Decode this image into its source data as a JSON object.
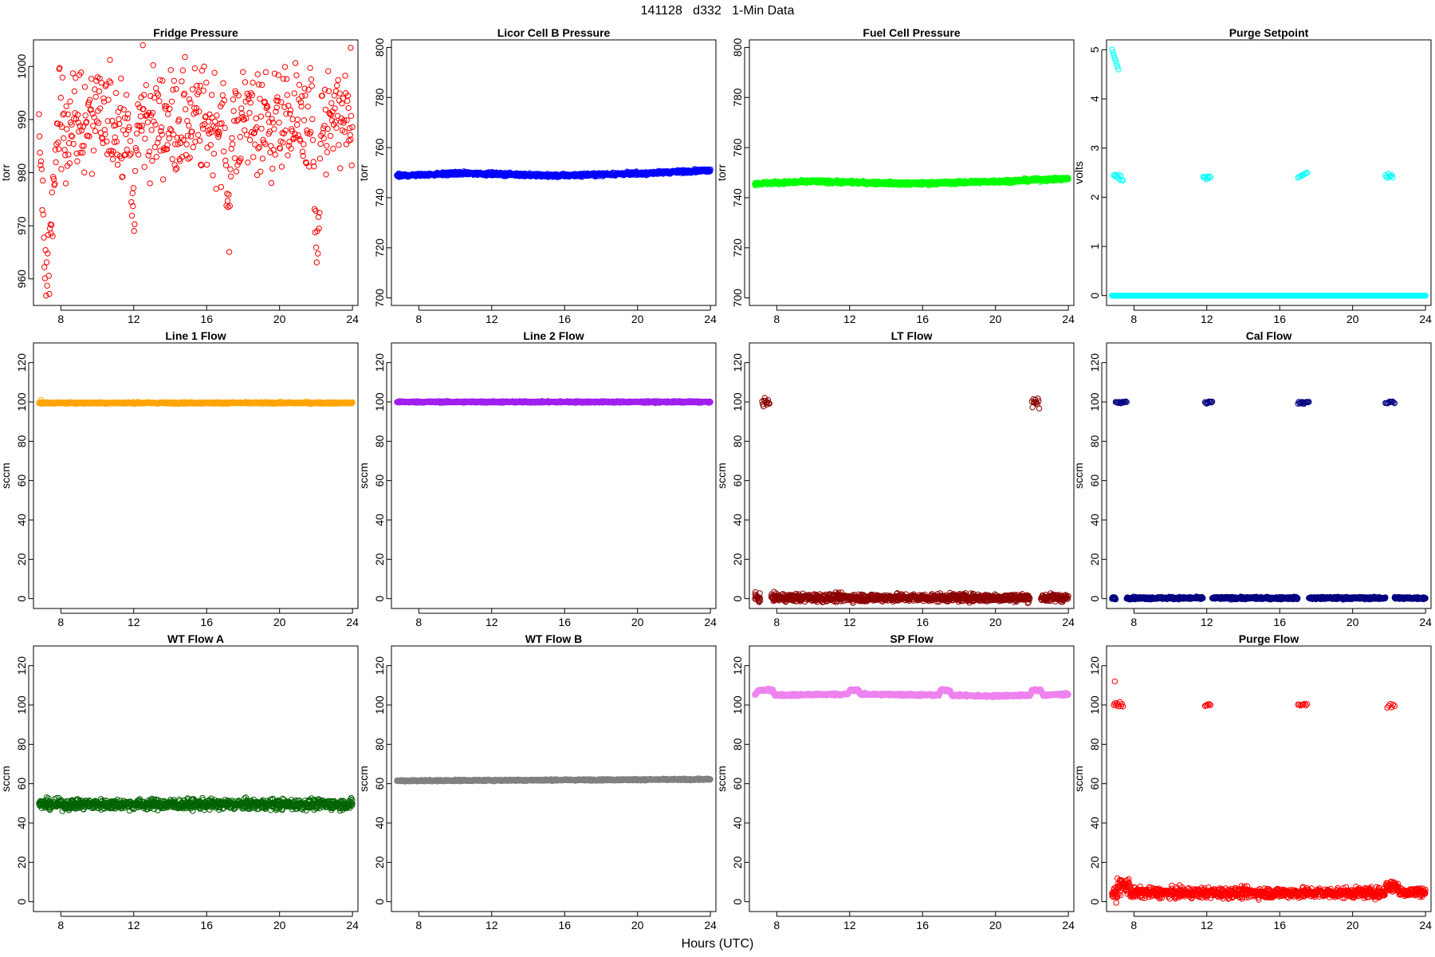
{
  "figure": {
    "title": "141128   d332   1-Min Data",
    "xlabel": "Hours (UTC)"
  },
  "chart_data": [
    {
      "type": "scatter",
      "title": "Fridge Pressure",
      "ylabel": "torr",
      "color": "#ff0000",
      "xlim": [
        6.5,
        24.3
      ],
      "x_ticks": [
        8,
        12,
        16,
        20,
        24
      ],
      "ylim": [
        955,
        1005
      ],
      "y_ticks": [
        960,
        970,
        980,
        990,
        1000
      ],
      "x_range": [
        6.8,
        24
      ],
      "pattern": "noisy",
      "base": 989.5,
      "noise": 5,
      "dips": [
        {
          "x": [
            6.8,
            7.8
          ],
          "to": 956
        },
        {
          "x": [
            11.8,
            12.2
          ],
          "to": 968
        },
        {
          "x": [
            17.0,
            17.4
          ],
          "to": 965
        },
        {
          "x": [
            21.8,
            22.3
          ],
          "to": 962
        }
      ],
      "extremes": [
        {
          "x": 12.5,
          "y": 1004
        },
        {
          "x": 23.9,
          "y": 1003.5
        }
      ]
    },
    {
      "type": "scatter",
      "title": "Licor Cell B Pressure",
      "ylabel": "torr",
      "color": "#0000ff",
      "xlim": [
        6.5,
        24.3
      ],
      "x_ticks": [
        8,
        12,
        16,
        20,
        24
      ],
      "ylim": [
        697,
        803
      ],
      "y_ticks": [
        700,
        720,
        740,
        760,
        780,
        800
      ],
      "x_range": [
        6.8,
        24
      ],
      "pattern": "trend",
      "trend": [
        [
          6.8,
          748.8
        ],
        [
          10.5,
          749.8
        ],
        [
          15.5,
          748.8
        ],
        [
          20.5,
          749.8
        ],
        [
          24,
          751
        ]
      ],
      "noise": 0.3
    },
    {
      "type": "scatter",
      "title": "Fuel Cell Pressure",
      "ylabel": "torr",
      "color": "#00ff00",
      "xlim": [
        6.5,
        24.3
      ],
      "x_ticks": [
        8,
        12,
        16,
        20,
        24
      ],
      "ylim": [
        697,
        803
      ],
      "y_ticks": [
        700,
        720,
        740,
        760,
        780,
        800
      ],
      "x_range": [
        6.8,
        24
      ],
      "pattern": "trend",
      "trend": [
        [
          6.8,
          745.6
        ],
        [
          10,
          746.5
        ],
        [
          15.5,
          745.6
        ],
        [
          20.5,
          746.6
        ],
        [
          24,
          747.6
        ]
      ],
      "noise": 0.3
    },
    {
      "type": "scatter",
      "title": "Purge Setpoint",
      "ylabel": "volts",
      "color": "#00ffff",
      "xlim": [
        6.5,
        24.3
      ],
      "x_ticks": [
        8,
        12,
        16,
        20,
        24
      ],
      "ylim": [
        -0.2,
        5.2
      ],
      "y_ticks": [
        0,
        1,
        2,
        3,
        4,
        5
      ],
      "x_range": [
        6.8,
        24
      ],
      "pattern": "segments",
      "segments": [
        {
          "x": [
            6.8,
            24
          ],
          "y": 0,
          "noise": 0
        }
      ],
      "clusters": [
        {
          "x": [
            6.8,
            7.15
          ],
          "y_from": 5.0,
          "y_to": 4.6,
          "n": 8
        },
        {
          "x": [
            6.9,
            7.4
          ],
          "y": 2.42,
          "noise": 0.05,
          "n": 10
        },
        {
          "x": [
            11.8,
            12.2
          ],
          "y": 2.42,
          "noise": 0.03,
          "n": 8
        },
        {
          "x": [
            17.0,
            17.5
          ],
          "y_from": 2.4,
          "y_to": 2.5,
          "n": 8
        },
        {
          "x": [
            21.8,
            22.2
          ],
          "y": 2.43,
          "noise": 0.02,
          "n": 8
        }
      ]
    },
    {
      "type": "scatter",
      "title": "Line 1 Flow",
      "ylabel": "sccm",
      "color": "#ffa500",
      "xlim": [
        6.5,
        24.3
      ],
      "x_ticks": [
        8,
        12,
        16,
        20,
        24
      ],
      "ylim": [
        -5,
        130
      ],
      "y_ticks": [
        0,
        20,
        40,
        60,
        80,
        100,
        120
      ],
      "x_range": [
        6.8,
        24
      ],
      "pattern": "flat",
      "base": 99.5,
      "noise": 0.2,
      "extremes": [
        {
          "x": 6.9,
          "y": 101
        }
      ]
    },
    {
      "type": "scatter",
      "title": "Line 2 Flow",
      "ylabel": "sccm",
      "color": "#a020f0",
      "xlim": [
        6.5,
        24.3
      ],
      "x_ticks": [
        8,
        12,
        16,
        20,
        24
      ],
      "ylim": [
        -5,
        130
      ],
      "y_ticks": [
        0,
        20,
        40,
        60,
        80,
        100,
        120
      ],
      "x_range": [
        6.8,
        24
      ],
      "pattern": "flat",
      "base": 100,
      "noise": 0.2
    },
    {
      "type": "scatter",
      "title": "LT Flow",
      "ylabel": "sccm",
      "color": "#8b0000",
      "xlim": [
        6.5,
        24.3
      ],
      "x_ticks": [
        8,
        12,
        16,
        20,
        24
      ],
      "ylim": [
        -5,
        130
      ],
      "y_ticks": [
        0,
        20,
        40,
        60,
        80,
        100,
        120
      ],
      "x_range": [
        6.8,
        24
      ],
      "pattern": "segments",
      "segments": [
        {
          "x": [
            6.8,
            7.1
          ],
          "y": 0.5,
          "noise": 1
        },
        {
          "x": [
            7.7,
            21.9
          ],
          "y": 0.5,
          "noise": 1
        },
        {
          "x": [
            22.5,
            24
          ],
          "y": 0.5,
          "noise": 1
        }
      ],
      "clusters": [
        {
          "x": [
            7.2,
            7.6
          ],
          "y": 99.5,
          "noise": 1.2,
          "n": 12
        },
        {
          "x": [
            22.0,
            22.4
          ],
          "y": 99.5,
          "noise": 1.2,
          "n": 12
        }
      ]
    },
    {
      "type": "scatter",
      "title": "Cal Flow",
      "ylabel": "sccm",
      "color": "#000080",
      "xlim": [
        6.5,
        24.3
      ],
      "x_ticks": [
        8,
        12,
        16,
        20,
        24
      ],
      "ylim": [
        -5,
        130
      ],
      "y_ticks": [
        0,
        20,
        40,
        60,
        80,
        100,
        120
      ],
      "x_range": [
        6.8,
        24
      ],
      "pattern": "segments",
      "segments": [
        {
          "x": [
            6.8,
            7.0
          ],
          "y": 0.3,
          "noise": 0.3
        },
        {
          "x": [
            7.6,
            11.8
          ],
          "y": 0.3,
          "noise": 0.3
        },
        {
          "x": [
            12.3,
            17.0
          ],
          "y": 0.3,
          "noise": 0.3
        },
        {
          "x": [
            17.6,
            21.8
          ],
          "y": 0.3,
          "noise": 0.3
        },
        {
          "x": [
            22.3,
            24
          ],
          "y": 0.3,
          "noise": 0.3
        }
      ],
      "clusters": [
        {
          "x": [
            7.0,
            7.6
          ],
          "y": 99.8,
          "noise": 0.3,
          "n": 14
        },
        {
          "x": [
            11.9,
            12.3
          ],
          "y": 99.8,
          "noise": 0.3,
          "n": 10
        },
        {
          "x": [
            17.0,
            17.6
          ],
          "y": 99.8,
          "noise": 0.3,
          "n": 14
        },
        {
          "x": [
            21.8,
            22.3
          ],
          "y": 99.8,
          "noise": 0.3,
          "n": 10
        }
      ]
    },
    {
      "type": "scatter",
      "title": "WT Flow A",
      "ylabel": "sccm",
      "color": "#006400",
      "xlim": [
        6.5,
        24.3
      ],
      "x_ticks": [
        8,
        12,
        16,
        20,
        24
      ],
      "ylim": [
        -5,
        130
      ],
      "y_ticks": [
        0,
        20,
        40,
        60,
        80,
        100,
        120
      ],
      "x_range": [
        6.8,
        24
      ],
      "pattern": "flat",
      "base": 49.5,
      "noise": 1.3
    },
    {
      "type": "scatter",
      "title": "WT Flow B",
      "ylabel": "sccm",
      "color": "#808080",
      "xlim": [
        6.5,
        24.3
      ],
      "x_ticks": [
        8,
        12,
        16,
        20,
        24
      ],
      "ylim": [
        -5,
        130
      ],
      "y_ticks": [
        0,
        20,
        40,
        60,
        80,
        100,
        120
      ],
      "x_range": [
        6.8,
        24
      ],
      "pattern": "trend",
      "trend": [
        [
          6.8,
          61.5
        ],
        [
          24,
          62.2
        ]
      ],
      "noise": 0.2
    },
    {
      "type": "scatter",
      "title": "SP Flow",
      "ylabel": "sccm",
      "color": "#ee82ee",
      "xlim": [
        6.5,
        24.3
      ],
      "x_ticks": [
        8,
        12,
        16,
        20,
        24
      ],
      "ylim": [
        -5,
        130
      ],
      "y_ticks": [
        0,
        20,
        40,
        60,
        80,
        100,
        120
      ],
      "x_range": [
        6.8,
        24
      ],
      "pattern": "trend",
      "trend": [
        [
          6.8,
          105
        ],
        [
          7.0,
          107.5
        ],
        [
          7.8,
          107.5
        ],
        [
          7.9,
          105
        ],
        [
          11.9,
          105.5
        ],
        [
          12.0,
          107.5
        ],
        [
          12.5,
          107.5
        ],
        [
          12.6,
          105.5
        ],
        [
          16.9,
          105
        ],
        [
          17.0,
          107.5
        ],
        [
          17.5,
          107.5
        ],
        [
          17.6,
          105
        ],
        [
          19.5,
          104.5
        ],
        [
          21.9,
          105
        ],
        [
          22.0,
          107.5
        ],
        [
          22.5,
          107.5
        ],
        [
          22.6,
          105
        ],
        [
          24,
          105.5
        ]
      ],
      "noise": 0.3
    },
    {
      "type": "scatter",
      "title": "Purge Flow",
      "ylabel": "sccm",
      "color": "#ff0000",
      "xlim": [
        6.5,
        24.3
      ],
      "x_ticks": [
        8,
        12,
        16,
        20,
        24
      ],
      "ylim": [
        -5,
        130
      ],
      "y_ticks": [
        0,
        20,
        40,
        60,
        80,
        100,
        120
      ],
      "x_range": [
        6.8,
        24
      ],
      "pattern": "segments",
      "segments": [
        {
          "x": [
            6.8,
            7.1
          ],
          "y": 4,
          "noise": 1.5
        },
        {
          "x": [
            7.1,
            7.8
          ],
          "y": 8,
          "noise": 2
        },
        {
          "x": [
            7.8,
            21.8
          ],
          "y": 4.5,
          "noise": 1.3
        },
        {
          "x": [
            21.8,
            22.5
          ],
          "y": 8,
          "noise": 1.5
        },
        {
          "x": [
            22.5,
            24
          ],
          "y": 5,
          "noise": 1.2
        }
      ],
      "clusters": [
        {
          "x": [
            6.9,
            7.4
          ],
          "y": 100,
          "noise": 0.8,
          "n": 10
        },
        {
          "x": [
            11.9,
            12.2
          ],
          "y": 100,
          "noise": 0.5,
          "n": 6
        },
        {
          "x": [
            17.0,
            17.5
          ],
          "y": 100,
          "noise": 0.5,
          "n": 8
        },
        {
          "x": [
            21.9,
            22.3
          ],
          "y": 100,
          "noise": 0.5,
          "n": 6
        }
      ],
      "extremes": [
        {
          "x": 6.95,
          "y": 112
        }
      ]
    }
  ]
}
